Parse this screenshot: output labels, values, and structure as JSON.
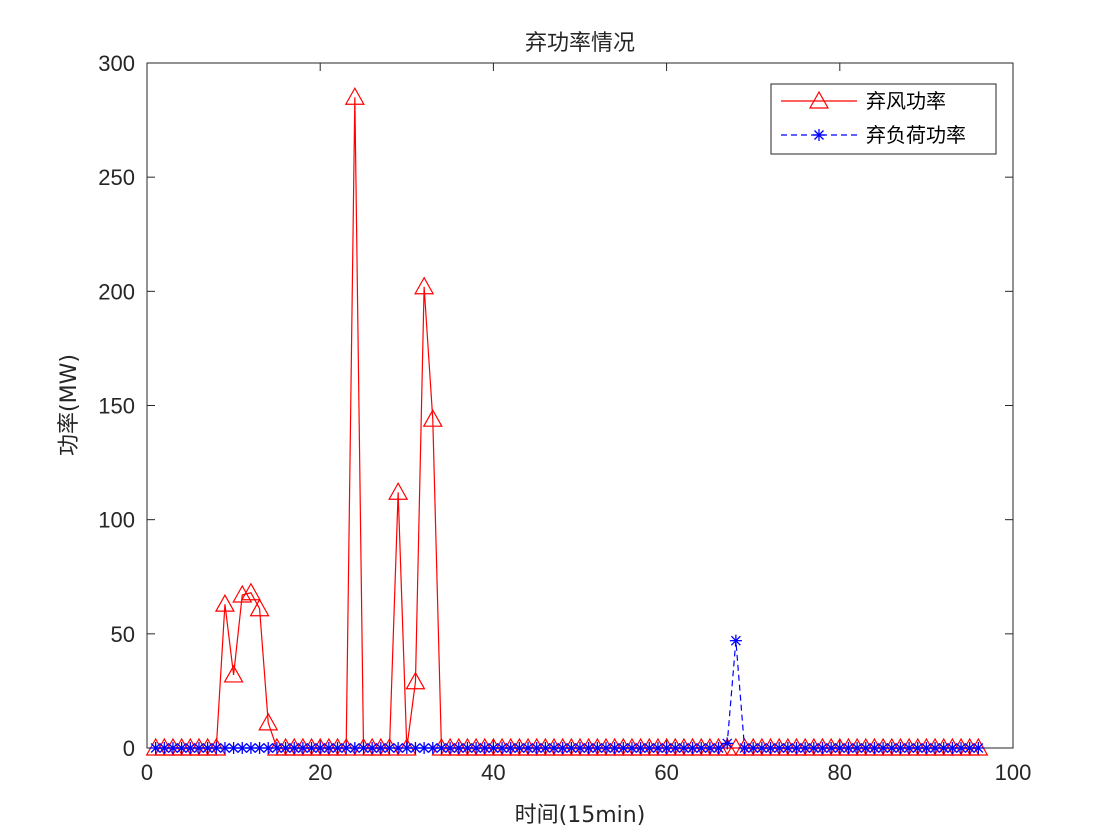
{
  "chart_data": {
    "type": "line",
    "title": "弃功率情况",
    "xlabel": "时间(15min)",
    "ylabel": "功率(MW)",
    "xlim": [
      0,
      100
    ],
    "ylim": [
      0,
      300
    ],
    "xticks": [
      0,
      20,
      40,
      60,
      80,
      100
    ],
    "yticks": [
      0,
      50,
      100,
      150,
      200,
      250,
      300
    ],
    "grid": false,
    "legend_position": "top-right",
    "x": [
      1,
      2,
      3,
      4,
      5,
      6,
      7,
      8,
      9,
      10,
      11,
      12,
      13,
      14,
      15,
      16,
      17,
      18,
      19,
      20,
      21,
      22,
      23,
      24,
      25,
      26,
      27,
      28,
      29,
      30,
      31,
      32,
      33,
      34,
      35,
      36,
      37,
      38,
      39,
      40,
      41,
      42,
      43,
      44,
      45,
      46,
      47,
      48,
      49,
      50,
      51,
      52,
      53,
      54,
      55,
      56,
      57,
      58,
      59,
      60,
      61,
      62,
      63,
      64,
      65,
      66,
      67,
      68,
      69,
      70,
      71,
      72,
      73,
      74,
      75,
      76,
      77,
      78,
      79,
      80,
      81,
      82,
      83,
      84,
      85,
      86,
      87,
      88,
      89,
      90,
      91,
      92,
      93,
      94,
      95,
      96
    ],
    "series": [
      {
        "name": "弃风功率",
        "color": "#ff0000",
        "line_style": "solid",
        "marker": "triangle",
        "values": [
          0,
          0,
          0,
          0,
          0,
          0,
          0,
          0,
          63,
          32,
          67,
          68,
          61,
          11,
          0,
          0,
          0,
          0,
          0,
          0,
          0,
          0,
          0,
          285,
          0,
          0,
          0,
          0,
          112,
          0,
          29,
          202,
          144,
          0,
          0,
          0,
          0,
          0,
          0,
          0,
          0,
          0,
          0,
          0,
          0,
          0,
          0,
          0,
          0,
          0,
          0,
          0,
          0,
          0,
          0,
          0,
          0,
          0,
          0,
          0,
          0,
          0,
          0,
          0,
          0,
          0,
          0,
          0,
          0,
          0,
          0,
          0,
          0,
          0,
          0,
          0,
          0,
          0,
          0,
          0,
          0,
          0,
          0,
          0,
          0,
          0,
          0,
          0,
          0,
          0,
          0,
          0,
          0,
          0,
          0,
          0
        ]
      },
      {
        "name": "弃负荷功率",
        "color": "#0000ff",
        "line_style": "dashed",
        "marker": "asterisk",
        "values": [
          0,
          0,
          0,
          0,
          0,
          0,
          0,
          0,
          0,
          0,
          0,
          0,
          0,
          0,
          0,
          0,
          0,
          0,
          0,
          0,
          0,
          0,
          0,
          0,
          0,
          0,
          0,
          0,
          0,
          0,
          0,
          0,
          0,
          0,
          0,
          0,
          0,
          0,
          0,
          0,
          0,
          0,
          0,
          0,
          0,
          0,
          0,
          0,
          0,
          0,
          0,
          0,
          0,
          0,
          0,
          0,
          0,
          0,
          0,
          0,
          0,
          0,
          0,
          0,
          0,
          0,
          2,
          47,
          0,
          0,
          0,
          0,
          0,
          0,
          0,
          0,
          0,
          0,
          0,
          0,
          0,
          0,
          0,
          0,
          0,
          0,
          0,
          0,
          0,
          0,
          0,
          0,
          0,
          0,
          0,
          0
        ]
      }
    ]
  }
}
